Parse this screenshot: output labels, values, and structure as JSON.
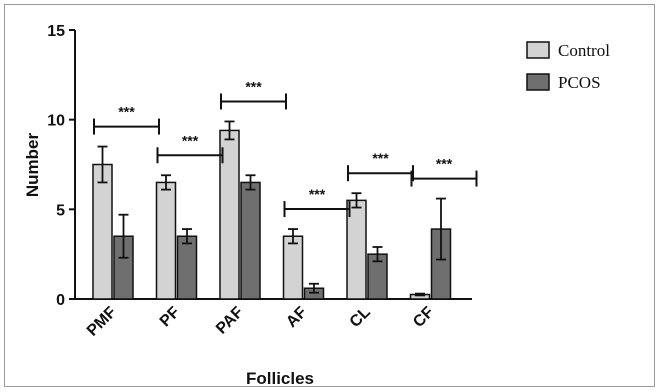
{
  "chart_data": {
    "type": "bar",
    "xlabel": "Follicles",
    "ylabel": "Number",
    "ylim": [
      0,
      15
    ],
    "yticks": [
      0,
      5,
      10,
      15
    ],
    "categories": [
      "PMF",
      "PF",
      "PAF",
      "AF",
      "CL",
      "CF"
    ],
    "series": [
      {
        "name": "Control",
        "color": "#d3d3d3",
        "values": [
          7.5,
          6.5,
          9.4,
          3.5,
          5.5,
          0.25
        ],
        "errors": [
          1.0,
          0.4,
          0.5,
          0.4,
          0.4,
          0.05
        ]
      },
      {
        "name": "PCOS",
        "color": "#6f6f6f",
        "values": [
          3.5,
          3.5,
          6.5,
          0.6,
          2.5,
          3.9
        ],
        "errors": [
          1.2,
          0.4,
          0.4,
          0.25,
          0.4,
          1.7
        ]
      }
    ],
    "significance": [
      "***",
      "***",
      "***",
      "***",
      "***",
      "***"
    ],
    "grid": false,
    "legend_position": "top-right"
  }
}
